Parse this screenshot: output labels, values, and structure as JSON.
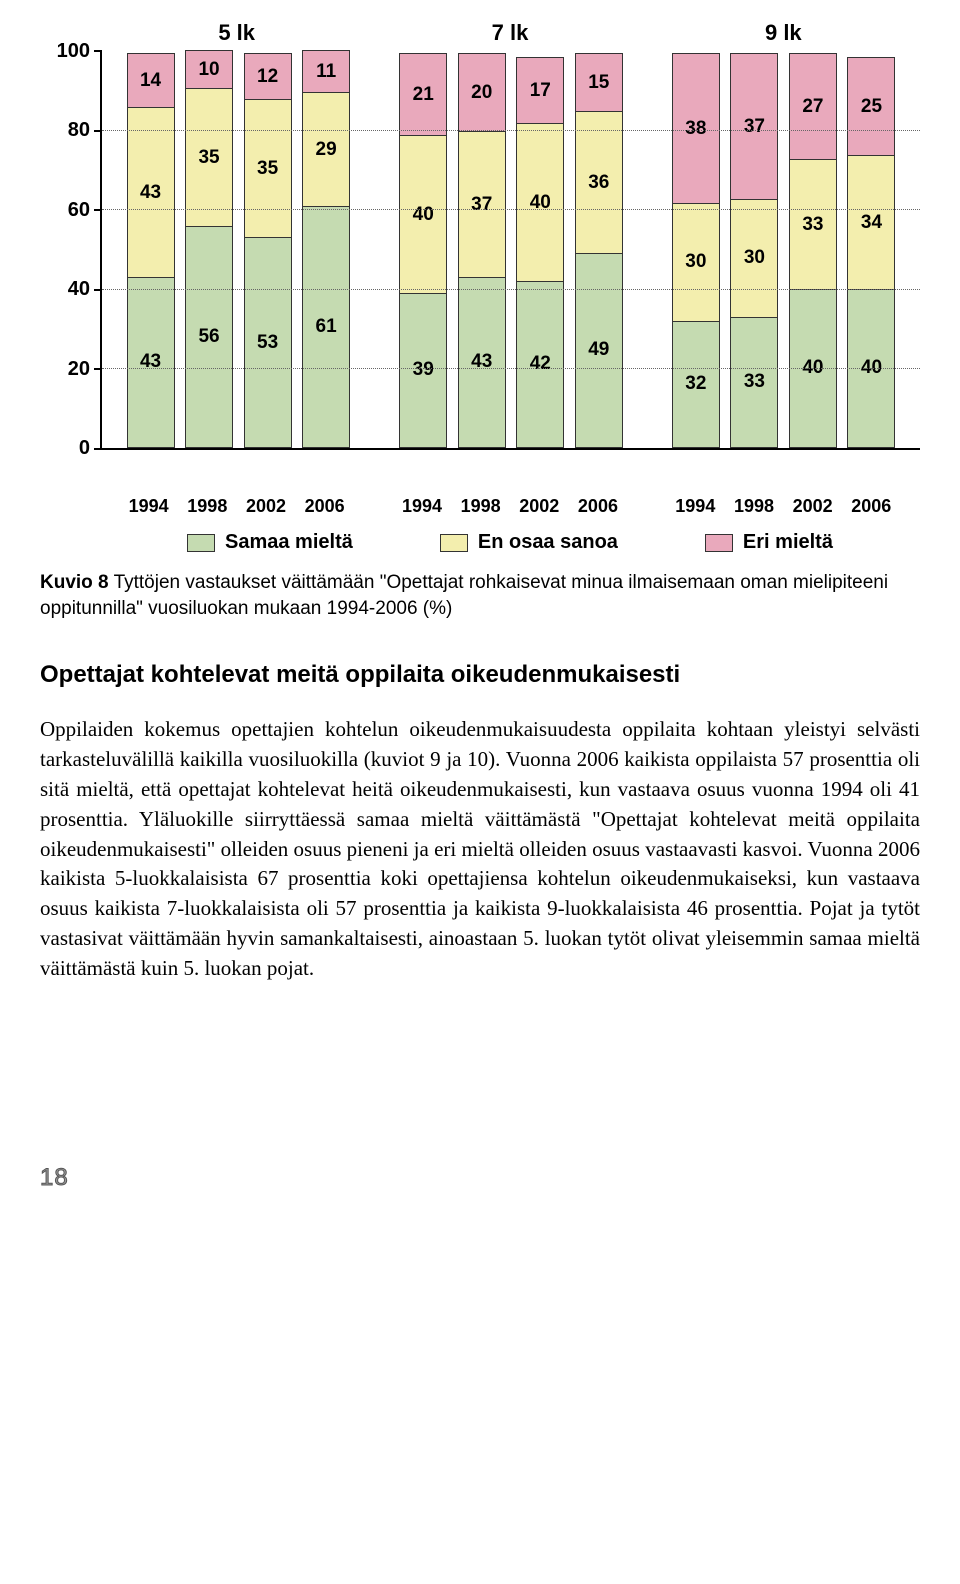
{
  "chart": {
    "type": "stacked-bar",
    "group_titles": [
      "5 lk",
      "7 lk",
      "9 lk"
    ],
    "y_ticks": [
      100,
      80,
      60,
      40,
      20,
      0
    ],
    "x_labels": [
      "1994",
      "1998",
      "2002",
      "2006"
    ],
    "legend": [
      {
        "label": "Samaa mieltä",
        "color": "#c5dbb1"
      },
      {
        "label": "En osaa sanoa",
        "color": "#f3eeae"
      },
      {
        "label": "Eri mieltä",
        "color": "#e9a9bc"
      }
    ],
    "colors": {
      "samaa": "#c5dbb1",
      "enosa": "#f3eeae",
      "eri": "#e9a9bc",
      "grid": "#666666",
      "border": "#333333"
    },
    "groups": [
      {
        "bars": [
          {
            "eri": 14,
            "enosa": 43,
            "samaa": 43
          },
          {
            "eri": 10,
            "enosa": 35,
            "samaa": 56
          },
          {
            "eri": 12,
            "enosa": 35,
            "samaa": 53
          },
          {
            "eri": 11,
            "enosa": 29,
            "samaa": 61
          }
        ]
      },
      {
        "bars": [
          {
            "eri": 21,
            "enosa": 40,
            "samaa": 39
          },
          {
            "eri": 20,
            "enosa": 37,
            "samaa": 43
          },
          {
            "eri": 17,
            "enosa": 40,
            "samaa": 42
          },
          {
            "eri": 15,
            "enosa": 36,
            "samaa": 49
          }
        ]
      },
      {
        "bars": [
          {
            "eri": 38,
            "enosa": 30,
            "samaa": 32
          },
          {
            "eri": 37,
            "enosa": 30,
            "samaa": 33
          },
          {
            "eri": 27,
            "enosa": 33,
            "samaa": 40
          },
          {
            "eri": 25,
            "enosa": 34,
            "samaa": 40
          }
        ]
      }
    ]
  },
  "caption": {
    "kuvio": "Kuvio 8",
    "text": "Tyttöjen vastaukset väittämään \"Opettajat rohkaisevat minua ilmaisemaan oman mielipiteeni oppitunnilla\" vuosiluokan mukaan 1994-2006 (%)"
  },
  "section_heading": "Opettajat kohtelevat meitä oppilaita oikeudenmukaisesti",
  "body_text": "Oppilaiden kokemus opettajien kohtelun oikeudenmukaisuudesta oppilaita kohtaan yleistyi selvästi tarkasteluvälillä kaikilla vuosiluokilla (kuviot 9 ja 10). Vuonna 2006 kaikista oppilaista 57 prosenttia oli sitä mieltä, että opettajat kohtelevat heitä oikeudenmukaisesti, kun vastaava osuus vuonna 1994 oli 41 prosenttia. Yläluokille siirryttäessä samaa mieltä väittämästä \"Opettajat kohtelevat meitä oppilaita oikeudenmukaisesti\" olleiden osuus pieneni ja eri mieltä olleiden osuus vastaavasti kasvoi. Vuonna 2006 kaikista 5-luokkalaisista 67 prosenttia koki opettajiensa kohtelun oikeudenmukaiseksi, kun vastaava osuus kaikista 7-luokkalaisista oli 57 prosenttia ja kaikista 9-luokkalaisista 46 prosenttia. Pojat ja tytöt vastasivat väittämään hyvin samankaltaisesti, ainoastaan 5. luokan tytöt olivat yleisemmin samaa mieltä väittämästä kuin 5. luokan pojat.",
  "page_number": "18"
}
